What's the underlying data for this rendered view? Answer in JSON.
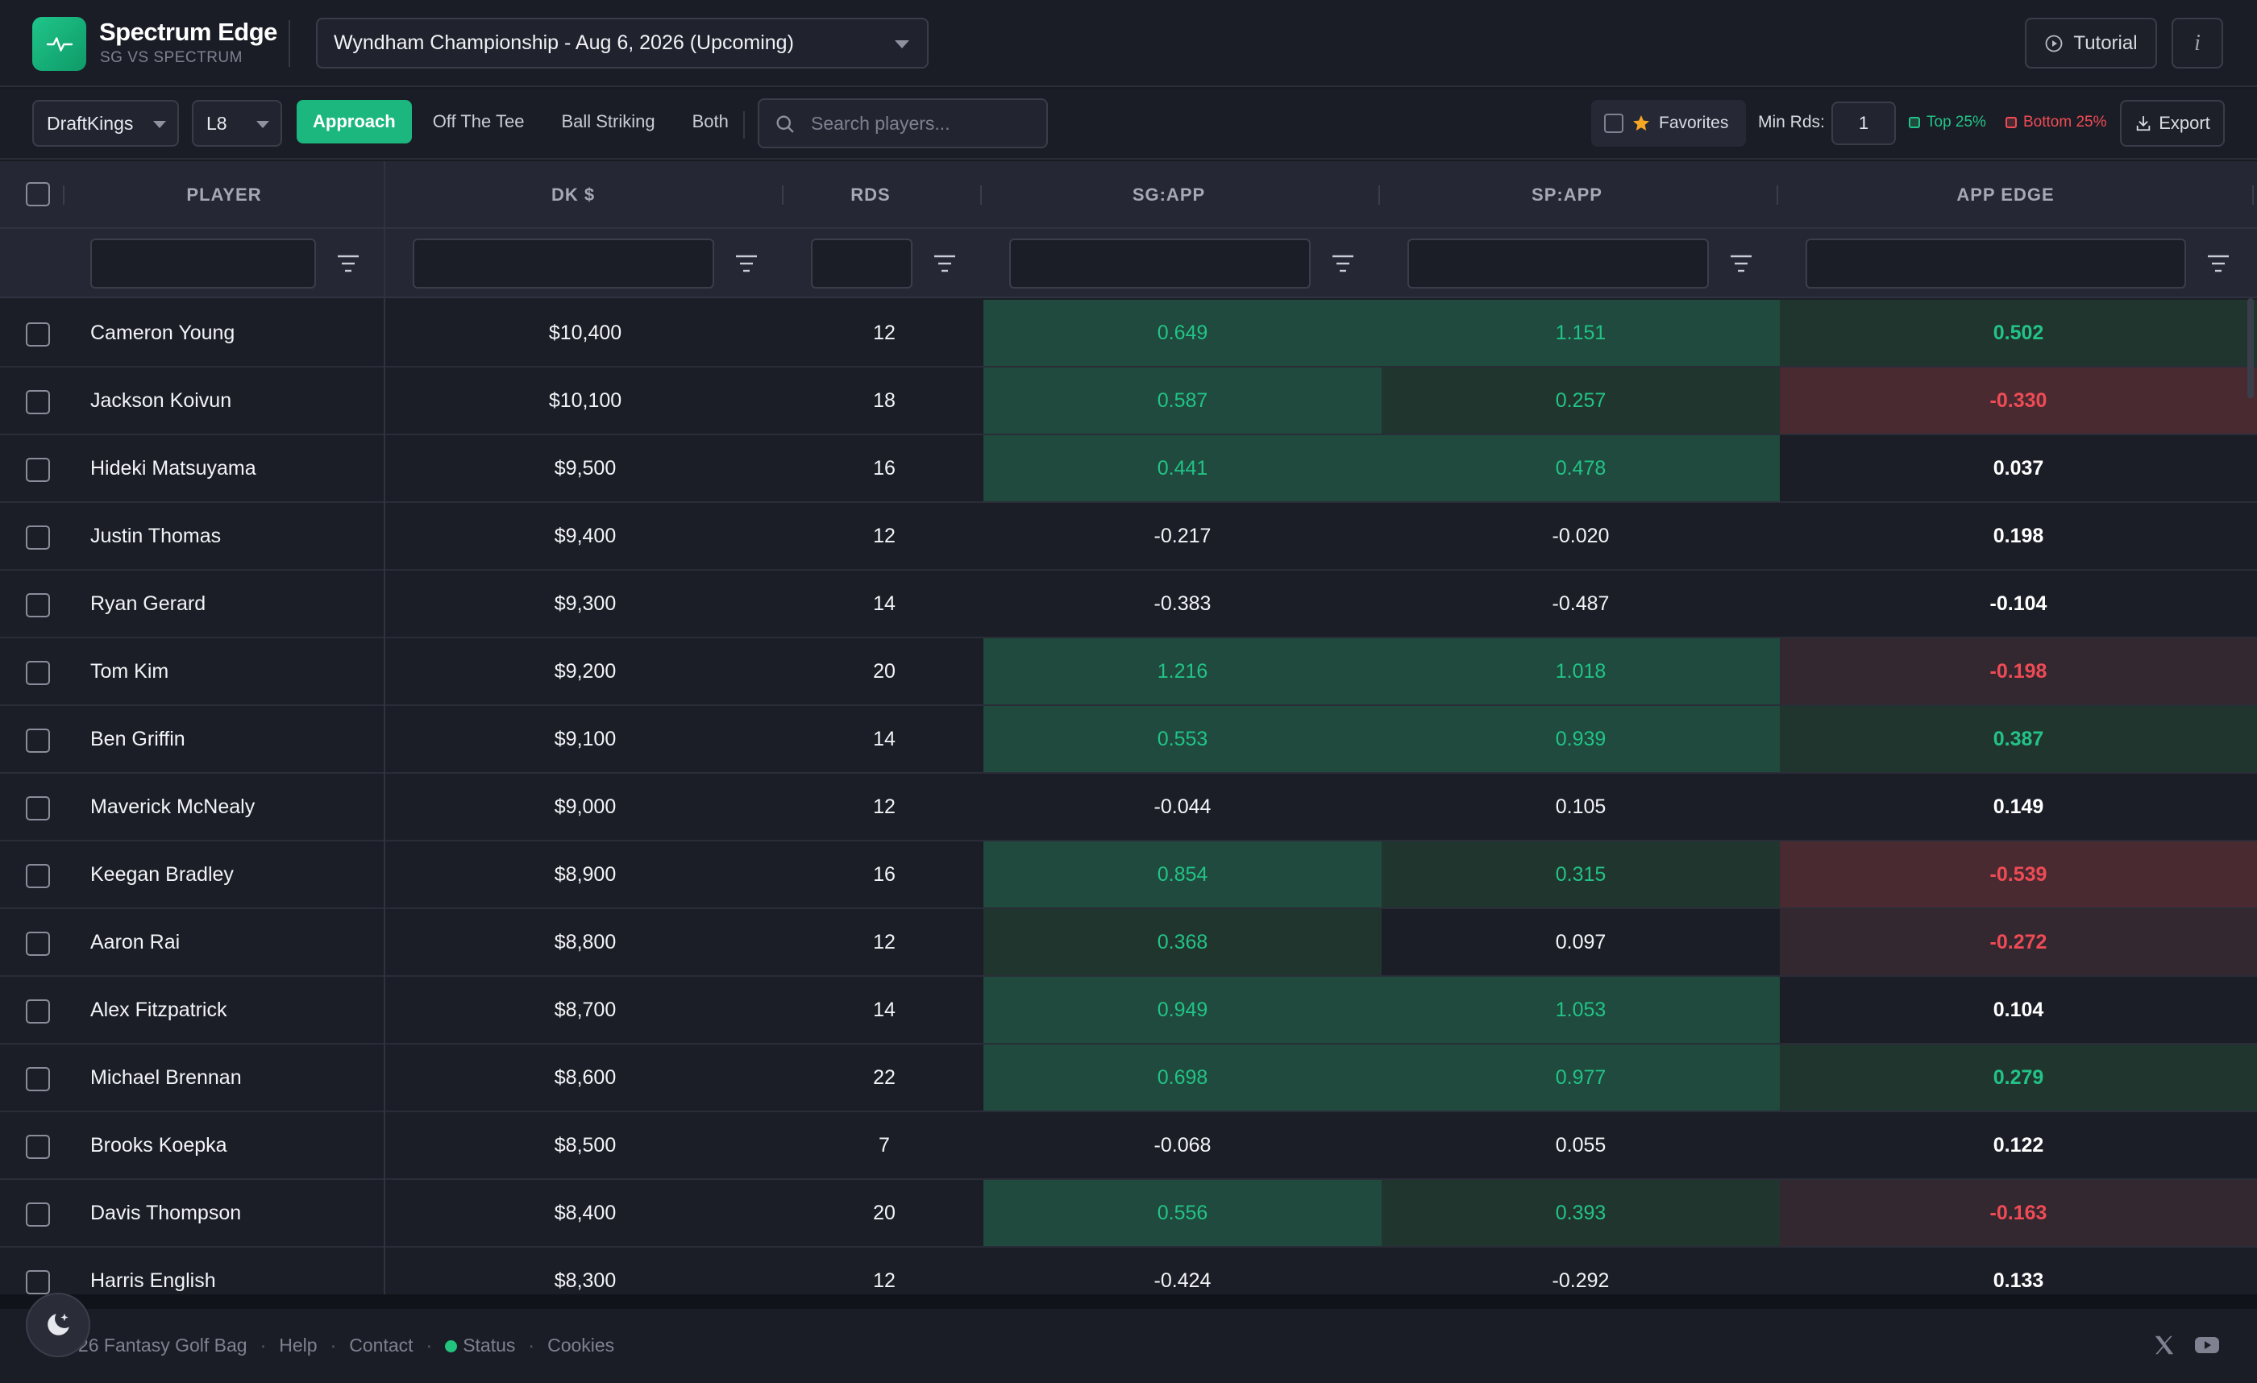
{
  "app": {
    "name": "Spectrum Edge",
    "subtitle": "SG VS SPECTRUM"
  },
  "event": {
    "selected": "Wyndham Championship - Aug 6, 2026 (Upcoming)"
  },
  "header": {
    "tutorial_label": "Tutorial",
    "info_label": "i"
  },
  "toolbar": {
    "site": "DraftKings",
    "range": "L8",
    "segments": [
      "Approach",
      "Off The Tee",
      "Ball Striking",
      "Both"
    ],
    "active_segment": "Approach",
    "search_placeholder": "Search players...",
    "favorites_label": "Favorites",
    "min_rds_label": "Min Rds:",
    "min_rds_value": "1",
    "top_label": "Top 25%",
    "bottom_label": "Bottom 25%",
    "export_label": "Export"
  },
  "table": {
    "columns": [
      "PLAYER",
      "DK $",
      "RDS",
      "SG:APP",
      "SP:APP",
      "APP EDGE"
    ],
    "rows": [
      {
        "player": "Cameron Young",
        "dk": "$10,400",
        "rds": "12",
        "sg": "0.649",
        "sp": "1.151",
        "edge": "0.502"
      },
      {
        "player": "Jackson Koivun",
        "dk": "$10,100",
        "rds": "18",
        "sg": "0.587",
        "sp": "0.257",
        "edge": "-0.330"
      },
      {
        "player": "Hideki Matsuyama",
        "dk": "$9,500",
        "rds": "16",
        "sg": "0.441",
        "sp": "0.478",
        "edge": "0.037"
      },
      {
        "player": "Justin Thomas",
        "dk": "$9,400",
        "rds": "12",
        "sg": "-0.217",
        "sp": "-0.020",
        "edge": "0.198"
      },
      {
        "player": "Ryan Gerard",
        "dk": "$9,300",
        "rds": "14",
        "sg": "-0.383",
        "sp": "-0.487",
        "edge": "-0.104"
      },
      {
        "player": "Tom Kim",
        "dk": "$9,200",
        "rds": "20",
        "sg": "1.216",
        "sp": "1.018",
        "edge": "-0.198"
      },
      {
        "player": "Ben Griffin",
        "dk": "$9,100",
        "rds": "14",
        "sg": "0.553",
        "sp": "0.939",
        "edge": "0.387"
      },
      {
        "player": "Maverick McNealy",
        "dk": "$9,000",
        "rds": "12",
        "sg": "-0.044",
        "sp": "0.105",
        "edge": "0.149"
      },
      {
        "player": "Keegan Bradley",
        "dk": "$8,900",
        "rds": "16",
        "sg": "0.854",
        "sp": "0.315",
        "edge": "-0.539"
      },
      {
        "player": "Aaron Rai",
        "dk": "$8,800",
        "rds": "12",
        "sg": "0.368",
        "sp": "0.097",
        "edge": "-0.272"
      },
      {
        "player": "Alex Fitzpatrick",
        "dk": "$8,700",
        "rds": "14",
        "sg": "0.949",
        "sp": "1.053",
        "edge": "0.104"
      },
      {
        "player": "Michael Brennan",
        "dk": "$8,600",
        "rds": "22",
        "sg": "0.698",
        "sp": "0.977",
        "edge": "0.279"
      },
      {
        "player": "Brooks Koepka",
        "dk": "$8,500",
        "rds": "7",
        "sg": "-0.068",
        "sp": "0.055",
        "edge": "0.122"
      },
      {
        "player": "Davis Thompson",
        "dk": "$8,400",
        "rds": "20",
        "sg": "0.556",
        "sp": "0.393",
        "edge": "-0.163"
      },
      {
        "player": "Harris English",
        "dk": "$8,300",
        "rds": "12",
        "sg": "-0.424",
        "sp": "-0.292",
        "edge": "0.133"
      }
    ]
  },
  "footer": {
    "copyright": "© 2026 Fantasy Golf Bag",
    "links": [
      "Help",
      "Contact",
      "Status",
      "Cookies"
    ]
  },
  "colors": {
    "accent": "#1bb77e",
    "positive_text": "#22c387",
    "negative_text": "#ef4b55",
    "strong_positive_bg": "#1f4a3d",
    "weak_positive_bg": "#21352f",
    "strong_negative_bg": "#4a2a31",
    "weak_negative_bg": "#332730"
  },
  "icons": {
    "logo": "pulse-icon",
    "tutorial": "play-circle-icon",
    "search": "search-icon",
    "favorites": "star-icon",
    "export": "download-icon",
    "filter": "filter-icon",
    "theme": "moon-icon",
    "social": [
      "x-icon",
      "youtube-icon"
    ]
  }
}
